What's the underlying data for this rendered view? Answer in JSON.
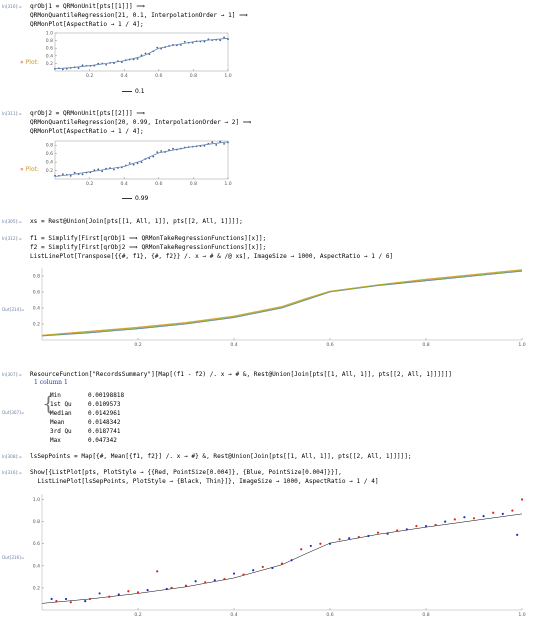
{
  "cells": [
    {
      "label": "In[310]:=",
      "lines": [
        "qrObj1 = QRMonUnit[pts[[1]]] ⟹",
        "QRMonQuantileRegression[21, 0.1, InterpolationOrder → 1] ⟹",
        "QRMonPlot[AspectRatio → 1 / 4];"
      ]
    },
    {
      "label": "In[311]:=",
      "lines": [
        "qrObj2 = QRMonUnit[pts[[2]]] ⟹",
        "QRMonQuantileRegression[20, 0.99, InterpolationOrder → 2] ⟹",
        "QRMonPlot[AspectRatio → 1 / 4];"
      ]
    },
    {
      "label": "In[305]:=",
      "lines": [
        "xs = Rest@Union[Join[pts[[1, All, 1]], pts[[2, All, 1]]]];"
      ]
    },
    {
      "label": "In[312]:=",
      "lines": [
        "f1 = Simplify[First[qrObj1 ⟹ QRMonTakeRegressionFunctions][x]];",
        "f2 = Simplify[First[qrObj2 ⟹ QRMonTakeRegressionFunctions][x]];",
        "ListLinePlot[Transpose[{{#, f1}, {#, f2}} /. x → # & /@ xs], ImageSize → 1000, AspectRatio → 1 / 6]"
      ]
    },
    {
      "label": "In[307]:=",
      "lines": [
        "ResourceFunction[\"RecordsSummary\"][Map[(f1 - f2) /. x → # &, Rest@Union[Join[pts[[1, All, 1]], pts[[2, All, 1]]]]]]"
      ]
    },
    {
      "label": "In[308]:=",
      "lines": [
        "lsSepPoints = Map[{#, Mean[{f1, f2}] /. x → #} &, Rest@Union[Join[pts[[1, All, 1]], pts[[2, All, 1]]]]];"
      ]
    },
    {
      "label": "In[316]:=",
      "lines": [
        "Show[{ListPlot[pts, PlotStyle → {{Red, PointSize[0.004]}, {Blue, PointSize[0.004]}}],",
        "  ListLinePlot[lsSepPoints, PlotStyle → {Black, Thin}]}, ImageSize → 1000, AspectRatio → 1 / 4]"
      ]
    }
  ],
  "plot_label": {
    "marker": "»",
    "text": "Plot:"
  },
  "legend1": "0.1",
  "legend2": "0.99",
  "out_labels": {
    "o314": "Out[314]=",
    "o307": "Out[307]=",
    "o316": "Out[316]="
  },
  "summary": {
    "header": "1 column 1",
    "rows": [
      {
        "k": "Min",
        "v": "0.00198818"
      },
      {
        "k": "1st Qu",
        "v": "0.0109573"
      },
      {
        "k": "Median",
        "v": "0.0142961"
      },
      {
        "k": "Mean",
        "v": "0.0148342"
      },
      {
        "k": "3rd Qu",
        "v": "0.0187741"
      },
      {
        "k": "Max",
        "v": "0.047342"
      }
    ]
  },
  "colors": {
    "line1": "#5e81b5",
    "line2": "#e19c24",
    "line3": "#8fb032",
    "red": "#e0201b",
    "blue": "#1f2fd0",
    "label": "#6a7fa0"
  },
  "chart_data": [
    {
      "type": "scatter",
      "title": "",
      "xlim": [
        0,
        1
      ],
      "ylim": [
        0,
        1
      ],
      "x_ticks": [
        0.2,
        0.4,
        0.6,
        0.8,
        1.0
      ],
      "y_ticks": [
        0.2,
        0.4,
        0.6,
        0.8,
        1.0
      ],
      "quantile_curve": [
        [
          0,
          0.06
        ],
        [
          0.1,
          0.09
        ],
        [
          0.2,
          0.14
        ],
        [
          0.3,
          0.2
        ],
        [
          0.4,
          0.27
        ],
        [
          0.5,
          0.38
        ],
        [
          0.55,
          0.48
        ],
        [
          0.6,
          0.6
        ],
        [
          0.7,
          0.69
        ],
        [
          0.8,
          0.77
        ],
        [
          0.9,
          0.82
        ],
        [
          1.0,
          0.86
        ]
      ],
      "legend": [
        "0.1"
      ]
    },
    {
      "type": "scatter",
      "title": "",
      "xlim": [
        0,
        1
      ],
      "ylim": [
        0,
        0.9
      ],
      "x_ticks": [
        0.2,
        0.4,
        0.6,
        0.8,
        1.0
      ],
      "y_ticks": [
        0.2,
        0.4,
        0.6,
        0.8
      ],
      "quantile_curve": [
        [
          0,
          0.06
        ],
        [
          0.1,
          0.11
        ],
        [
          0.2,
          0.17
        ],
        [
          0.3,
          0.23
        ],
        [
          0.4,
          0.3
        ],
        [
          0.5,
          0.43
        ],
        [
          0.55,
          0.53
        ],
        [
          0.6,
          0.62
        ],
        [
          0.7,
          0.7
        ],
        [
          0.8,
          0.77
        ],
        [
          0.9,
          0.83
        ],
        [
          1.0,
          0.88
        ]
      ],
      "legend": [
        "0.99"
      ]
    },
    {
      "type": "line",
      "title": "",
      "xlim": [
        0,
        1
      ],
      "ylim": [
        0,
        0.9
      ],
      "x_ticks": [
        0.2,
        0.4,
        0.6,
        0.8,
        1.0
      ],
      "y_ticks": [
        0.2,
        0.4,
        0.6,
        0.8
      ],
      "series": [
        {
          "values": [
            [
              0,
              0.05
            ],
            [
              0.1,
              0.09
            ],
            [
              0.2,
              0.14
            ],
            [
              0.3,
              0.2
            ],
            [
              0.4,
              0.28
            ],
            [
              0.5,
              0.4
            ],
            [
              0.55,
              0.5
            ],
            [
              0.6,
              0.6
            ],
            [
              0.7,
              0.68
            ],
            [
              0.8,
              0.74
            ],
            [
              0.9,
              0.8
            ],
            [
              1.0,
              0.86
            ]
          ]
        },
        {
          "values": [
            [
              0,
              0.06
            ],
            [
              0.1,
              0.11
            ],
            [
              0.2,
              0.16
            ],
            [
              0.3,
              0.22
            ],
            [
              0.4,
              0.3
            ],
            [
              0.5,
              0.42
            ],
            [
              0.55,
              0.52
            ],
            [
              0.6,
              0.61
            ],
            [
              0.7,
              0.69
            ],
            [
              0.8,
              0.76
            ],
            [
              0.9,
              0.82
            ],
            [
              1.0,
              0.88
            ]
          ]
        },
        {
          "values": [
            [
              0,
              0.055
            ],
            [
              0.1,
              0.1
            ],
            [
              0.2,
              0.15
            ],
            [
              0.3,
              0.21
            ],
            [
              0.4,
              0.29
            ],
            [
              0.5,
              0.41
            ],
            [
              0.55,
              0.51
            ],
            [
              0.6,
              0.605
            ],
            [
              0.7,
              0.685
            ],
            [
              0.8,
              0.75
            ],
            [
              0.9,
              0.81
            ],
            [
              1.0,
              0.87
            ]
          ]
        }
      ]
    },
    {
      "type": "scatter",
      "title": "",
      "xlim": [
        0,
        1
      ],
      "ylim": [
        0,
        1.05
      ],
      "x_ticks": [
        0.2,
        0.4,
        0.6,
        0.8,
        1.0
      ],
      "y_ticks": [
        0.2,
        0.4,
        0.6,
        0.8,
        1.0
      ],
      "red_points": [
        [
          0.03,
          0.08
        ],
        [
          0.06,
          0.07
        ],
        [
          0.1,
          0.1
        ],
        [
          0.14,
          0.12
        ],
        [
          0.18,
          0.17
        ],
        [
          0.2,
          0.16
        ],
        [
          0.24,
          0.35
        ],
        [
          0.27,
          0.2
        ],
        [
          0.3,
          0.22
        ],
        [
          0.34,
          0.25
        ],
        [
          0.38,
          0.28
        ],
        [
          0.42,
          0.32
        ],
        [
          0.46,
          0.39
        ],
        [
          0.5,
          0.42
        ],
        [
          0.54,
          0.55
        ],
        [
          0.58,
          0.6
        ],
        [
          0.62,
          0.64
        ],
        [
          0.66,
          0.66
        ],
        [
          0.7,
          0.7
        ],
        [
          0.74,
          0.72
        ],
        [
          0.78,
          0.76
        ],
        [
          0.82,
          0.77
        ],
        [
          0.86,
          0.82
        ],
        [
          0.9,
          0.83
        ],
        [
          0.94,
          0.88
        ],
        [
          0.98,
          0.9
        ],
        [
          1.0,
          1.0
        ]
      ],
      "blue_points": [
        [
          0.02,
          0.1
        ],
        [
          0.05,
          0.1
        ],
        [
          0.09,
          0.08
        ],
        [
          0.12,
          0.15
        ],
        [
          0.16,
          0.14
        ],
        [
          0.22,
          0.18
        ],
        [
          0.26,
          0.19
        ],
        [
          0.32,
          0.26
        ],
        [
          0.36,
          0.27
        ],
        [
          0.4,
          0.33
        ],
        [
          0.44,
          0.36
        ],
        [
          0.48,
          0.38
        ],
        [
          0.52,
          0.45
        ],
        [
          0.56,
          0.58
        ],
        [
          0.6,
          0.6
        ],
        [
          0.64,
          0.65
        ],
        [
          0.68,
          0.67
        ],
        [
          0.72,
          0.69
        ],
        [
          0.76,
          0.73
        ],
        [
          0.8,
          0.76
        ],
        [
          0.84,
          0.8
        ],
        [
          0.88,
          0.84
        ],
        [
          0.92,
          0.85
        ],
        [
          0.96,
          0.87
        ],
        [
          0.99,
          0.68
        ]
      ],
      "separator": [
        [
          0,
          0.06
        ],
        [
          0.1,
          0.1
        ],
        [
          0.2,
          0.15
        ],
        [
          0.3,
          0.21
        ],
        [
          0.4,
          0.29
        ],
        [
          0.5,
          0.41
        ],
        [
          0.55,
          0.51
        ],
        [
          0.6,
          0.605
        ],
        [
          0.7,
          0.685
        ],
        [
          0.8,
          0.75
        ],
        [
          0.9,
          0.81
        ],
        [
          1.0,
          0.87
        ]
      ]
    }
  ]
}
